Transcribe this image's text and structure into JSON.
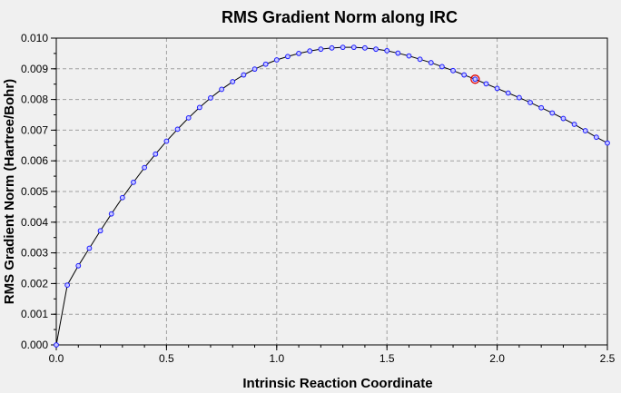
{
  "chart_data": {
    "type": "line",
    "title": "RMS Gradient Norm along IRC",
    "xlabel": "Intrinsic Reaction Coordinate",
    "ylabel": "RMS Gradient Norm (Hartree/Bohr)",
    "xlim": [
      0,
      2.5
    ],
    "ylim": [
      0,
      0.01
    ],
    "xticks": [
      "0.0",
      "0.5",
      "1.0",
      "1.5",
      "2.0",
      "2.5"
    ],
    "yticks": [
      "0.000",
      "0.001",
      "0.002",
      "0.003",
      "0.004",
      "0.005",
      "0.006",
      "0.007",
      "0.008",
      "0.009",
      "0.010"
    ],
    "grid": true,
    "legend": "none",
    "colors": {
      "line": "#000000",
      "marker": "#1a1aff",
      "marker_fill": "#c8c8ff",
      "highlight": "#e00000",
      "plot_bg": "#f0f0f0",
      "grid": "#a0a0a0"
    },
    "highlight_point": {
      "x": 1.9,
      "y": 0.00866
    },
    "series": [
      {
        "x": [
          0.0,
          0.05,
          0.1,
          0.15,
          0.2,
          0.25,
          0.3,
          0.35,
          0.4,
          0.45,
          0.5,
          0.55,
          0.6,
          0.65,
          0.7,
          0.75,
          0.8,
          0.85,
          0.9,
          0.95,
          1.0,
          1.05,
          1.1,
          1.15,
          1.2,
          1.25,
          1.3,
          1.35,
          1.4,
          1.45,
          1.5,
          1.55,
          1.6,
          1.65,
          1.7,
          1.75,
          1.8,
          1.85,
          1.9,
          1.95,
          2.0,
          2.05,
          2.1,
          2.15,
          2.2,
          2.25,
          2.3,
          2.35,
          2.4,
          2.45,
          2.5
        ],
        "values": [
          0.0,
          0.00195,
          0.00258,
          0.00315,
          0.00372,
          0.00427,
          0.0048,
          0.0053,
          0.00578,
          0.00622,
          0.00664,
          0.00703,
          0.0074,
          0.00774,
          0.00805,
          0.00833,
          0.00858,
          0.0088,
          0.00899,
          0.00915,
          0.00929,
          0.0094,
          0.0095,
          0.00958,
          0.00964,
          0.00968,
          0.0097,
          0.0097,
          0.00968,
          0.00964,
          0.00959,
          0.00951,
          0.00942,
          0.00931,
          0.0092,
          0.00907,
          0.00894,
          0.0088,
          0.00866,
          0.00851,
          0.00836,
          0.00821,
          0.00806,
          0.0079,
          0.00773,
          0.00756,
          0.00738,
          0.00719,
          0.00698,
          0.00677,
          0.00658
        ]
      }
    ]
  }
}
